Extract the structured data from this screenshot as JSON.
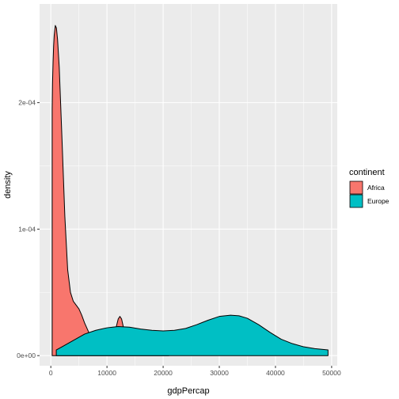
{
  "chart_data": {
    "type": "area",
    "subtype": "density",
    "xlabel": "gdpPercap",
    "ylabel": "density",
    "xlim": [
      -2000,
      51000
    ],
    "ylim": [
      -8e-06,
      0.000278
    ],
    "x_ticks": [
      0,
      10000,
      20000,
      30000,
      40000,
      50000
    ],
    "x_tick_labels": [
      "0",
      "10000",
      "20000",
      "30000",
      "40000",
      "50000"
    ],
    "y_ticks": [
      0,
      0.0001,
      0.0002
    ],
    "y_tick_labels": [
      "0e+00",
      "1e-04",
      "2e-04"
    ],
    "grid": true,
    "legend": {
      "title": "continent",
      "position": "right"
    },
    "series": [
      {
        "name": "Africa",
        "color": "#F8766D",
        "points": [
          [
            241,
            0.000195
          ],
          [
            300,
            0.000215
          ],
          [
            400,
            0.000232
          ],
          [
            500,
            0.000245
          ],
          [
            600,
            0.000253
          ],
          [
            800,
            0.000261
          ],
          [
            1000,
            0.000259
          ],
          [
            1200,
            0.00025
          ],
          [
            1500,
            0.000228
          ],
          [
            2000,
            0.00017
          ],
          [
            2500,
            0.00011
          ],
          [
            3000,
            6.8e-05
          ],
          [
            3500,
            5e-05
          ],
          [
            4000,
            4.3e-05
          ],
          [
            4500,
            4e-05
          ],
          [
            5000,
            3.7e-05
          ],
          [
            5500,
            3.2e-05
          ],
          [
            6000,
            2.6e-05
          ],
          [
            7000,
            1.6e-05
          ],
          [
            8000,
            1e-05
          ],
          [
            9000,
            7e-06
          ],
          [
            10000,
            6e-06
          ],
          [
            11000,
            1e-05
          ],
          [
            11500,
            2e-05
          ],
          [
            12000,
            2.9e-05
          ],
          [
            12300,
            3.1e-05
          ],
          [
            12600,
            2.9e-05
          ],
          [
            13000,
            2.1e-05
          ],
          [
            13500,
            1e-05
          ],
          [
            14000,
            5e-06
          ],
          [
            15000,
            3e-06
          ],
          [
            16000,
            2e-06
          ],
          [
            18000,
            2e-06
          ],
          [
            20000,
            1e-06
          ],
          [
            21000,
            1e-06
          ]
        ]
      },
      {
        "name": "Europe",
        "color": "#00BFC4",
        "points": [
          [
            973,
            4.5e-06
          ],
          [
            2000,
            7e-06
          ],
          [
            3000,
            9.5e-06
          ],
          [
            4000,
            1.2e-05
          ],
          [
            5000,
            1.45e-05
          ],
          [
            6000,
            1.7e-05
          ],
          [
            7000,
            1.85e-05
          ],
          [
            8000,
            2e-05
          ],
          [
            9000,
            2.1e-05
          ],
          [
            10000,
            2.2e-05
          ],
          [
            11000,
            2.25e-05
          ],
          [
            12000,
            2.3e-05
          ],
          [
            14000,
            2.25e-05
          ],
          [
            16000,
            2.1e-05
          ],
          [
            18000,
            2e-05
          ],
          [
            20000,
            1.95e-05
          ],
          [
            22000,
            2e-05
          ],
          [
            24000,
            2.15e-05
          ],
          [
            26000,
            2.45e-05
          ],
          [
            28000,
            2.8e-05
          ],
          [
            30000,
            3.1e-05
          ],
          [
            32000,
            3.2e-05
          ],
          [
            33500,
            3.15e-05
          ],
          [
            35000,
            2.95e-05
          ],
          [
            37000,
            2.45e-05
          ],
          [
            39000,
            1.85e-05
          ],
          [
            41000,
            1.3e-05
          ],
          [
            43000,
            9.5e-06
          ],
          [
            45000,
            7e-06
          ],
          [
            47000,
            5.5e-06
          ],
          [
            49357,
            4.5e-06
          ]
        ]
      }
    ]
  }
}
